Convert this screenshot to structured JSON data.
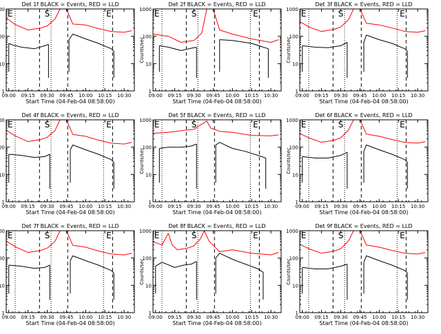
{
  "chart_data": [
    {
      "type": "line",
      "title": "Det 1f BLACK = Events, RED = LLD",
      "xlabel": "Start Time (04-Feb-04 08:58:00)",
      "ylabel": "Counts/sec",
      "xlim": [
        "08:58",
        "10:38"
      ],
      "yscale": "log",
      "ylim": [
        1,
        1000
      ],
      "x_ticks": [
        "09:00",
        "09:15",
        "09:30",
        "09:45",
        "10:00",
        "10:15",
        "10:30"
      ],
      "y_ticks": [
        "1",
        "10",
        "100",
        "1000"
      ],
      "markers": [
        "E",
        "S",
        "E"
      ],
      "series": [
        {
          "color": "#ff0000",
          "x": [
            "08:58",
            "09:05",
            "09:15",
            "09:25",
            "09:30",
            "09:36",
            "09:40",
            "09:45",
            "09:50",
            "10:00",
            "10:10",
            "10:20",
            "10:30",
            "10:36"
          ],
          "values": [
            470,
            270,
            170,
            200,
            240,
            420,
            1000,
            1000,
            280,
            260,
            190,
            150,
            140,
            160
          ]
        },
        {
          "color": "#000000",
          "x": [
            "09:00",
            "09:03",
            "09:10",
            "09:20",
            "09:28",
            "09:31"
          ],
          "values": [
            55,
            48,
            40,
            35,
            45,
            50
          ]
        },
        {
          "color": "#000000",
          "x": [
            "09:47",
            "09:50",
            "10:00",
            "10:10",
            "10:20",
            "10:22"
          ],
          "values": [
            75,
            120,
            80,
            55,
            35,
            28
          ]
        }
      ]
    },
    {
      "type": "line",
      "title": "Det 2f BLACK = Events, RED = LLD",
      "xlabel": "Start Time (04-Feb-04 08:58:00)",
      "ylabel": "Counts/sec",
      "xlim": [
        "08:58",
        "10:38"
      ],
      "yscale": "log",
      "ylim": [
        1,
        1000
      ],
      "x_ticks": [
        "09:00",
        "09:15",
        "09:30",
        "09:45",
        "10:00",
        "10:15",
        "10:30"
      ],
      "y_ticks": [
        "1",
        "10",
        "100",
        "1000"
      ],
      "markers": [
        "E",
        "S",
        "E"
      ],
      "series": [
        {
          "color": "#ff0000",
          "x": [
            "08:58",
            "09:10",
            "09:20",
            "09:30",
            "09:36",
            "09:40",
            "09:45",
            "09:50",
            "10:00",
            "10:15",
            "10:30",
            "10:36"
          ],
          "values": [
            120,
            100,
            60,
            70,
            130,
            1000,
            1000,
            170,
            120,
            80,
            60,
            75
          ]
        },
        {
          "color": "#000000",
          "x": [
            "09:03",
            "09:10",
            "09:20",
            "09:26",
            "09:32"
          ],
          "values": [
            45,
            40,
            30,
            35,
            40
          ]
        },
        {
          "color": "#000000",
          "x": [
            "09:50",
            "10:00",
            "10:15",
            "10:28"
          ],
          "values": [
            75,
            70,
            55,
            35
          ]
        }
      ]
    },
    {
      "type": "line",
      "title": "Det 3f BLACK = Events, RED = LLD",
      "xlabel": "Start Time (04-Feb-04 08:58:00)",
      "ylabel": "Counts/sec",
      "xlim": [
        "08:58",
        "10:38"
      ],
      "yscale": "log",
      "ylim": [
        1,
        1000
      ],
      "x_ticks": [
        "09:00",
        "09:15",
        "09:30",
        "09:45",
        "10:00",
        "10:15",
        "10:30"
      ],
      "y_ticks": [
        "1",
        "10",
        "100",
        "1000"
      ],
      "markers": [
        "E",
        "S",
        "E"
      ],
      "series": [
        {
          "color": "#ff0000",
          "x": [
            "08:58",
            "09:05",
            "09:15",
            "09:25",
            "09:30",
            "09:36",
            "09:40",
            "09:45",
            "09:50",
            "10:00",
            "10:10",
            "10:20",
            "10:30",
            "10:36"
          ],
          "values": [
            350,
            220,
            150,
            180,
            220,
            400,
            1000,
            1000,
            300,
            260,
            200,
            150,
            140,
            160
          ]
        },
        {
          "color": "#000000",
          "x": [
            "09:00",
            "09:10",
            "09:20",
            "09:30",
            "09:35"
          ],
          "values": [
            45,
            40,
            38,
            45,
            60
          ]
        },
        {
          "color": "#000000",
          "x": [
            "09:48",
            "09:50",
            "10:00",
            "10:10",
            "10:20",
            "10:22"
          ],
          "values": [
            60,
            110,
            75,
            55,
            35,
            28
          ]
        }
      ]
    },
    {
      "type": "line",
      "title": "Det 4f BLACK = Events, RED = LLD",
      "xlabel": "Start Time (04-Feb-04 08:58:00)",
      "ylabel": "Counts/sec",
      "xlim": [
        "08:58",
        "10:38"
      ],
      "yscale": "log",
      "ylim": [
        1,
        1000
      ],
      "x_ticks": [
        "09:00",
        "09:15",
        "09:30",
        "09:45",
        "10:00",
        "10:15",
        "10:30"
      ],
      "y_ticks": [
        "1",
        "10",
        "100",
        "1000"
      ],
      "markers": [
        "E",
        "S",
        "E"
      ],
      "series": [
        {
          "color": "#ff0000",
          "x": [
            "08:58",
            "09:05",
            "09:15",
            "09:25",
            "09:30",
            "09:36",
            "09:40",
            "09:45",
            "09:50",
            "10:00",
            "10:10",
            "10:20",
            "10:30",
            "10:36"
          ],
          "values": [
            420,
            260,
            160,
            190,
            230,
            400,
            1000,
            1000,
            290,
            250,
            180,
            140,
            130,
            150
          ]
        },
        {
          "color": "#000000",
          "x": [
            "09:00",
            "09:10",
            "09:20",
            "09:28",
            "09:32"
          ],
          "values": [
            55,
            50,
            42,
            45,
            55
          ]
        },
        {
          "color": "#000000",
          "x": [
            "09:48",
            "09:50",
            "10:00",
            "10:10",
            "10:20",
            "10:22"
          ],
          "values": [
            80,
            120,
            80,
            55,
            35,
            28
          ]
        }
      ]
    },
    {
      "type": "line",
      "title": "Det 5f BLACK = Events, RED = LLD",
      "xlabel": "Start Time (04-Feb-04 08:58:00)",
      "ylabel": "Counts/sec",
      "xlim": [
        "08:58",
        "10:38"
      ],
      "yscale": "log",
      "ylim": [
        1,
        1000
      ],
      "x_ticks": [
        "09:00",
        "09:15",
        "09:30",
        "09:45",
        "10:00",
        "10:15",
        "10:30"
      ],
      "y_ticks": [
        "1",
        "10",
        "100",
        "1000"
      ],
      "markers": [
        "E",
        "S",
        "E"
      ],
      "series": [
        {
          "color": "#ff0000",
          "x": [
            "08:58",
            "09:10",
            "09:20",
            "09:30",
            "09:35",
            "09:40",
            "09:43",
            "09:50",
            "10:00",
            "10:15",
            "10:30",
            "10:36"
          ],
          "values": [
            320,
            350,
            400,
            450,
            650,
            900,
            500,
            380,
            350,
            270,
            260,
            280
          ]
        },
        {
          "color": "#000000",
          "x": [
            "09:03",
            "09:10",
            "09:20",
            "09:28",
            "09:32"
          ],
          "values": [
            90,
            100,
            100,
            110,
            130
          ]
        },
        {
          "color": "#000000",
          "x": [
            "09:47",
            "09:50",
            "10:00",
            "10:10",
            "10:20",
            "10:26"
          ],
          "values": [
            120,
            150,
            90,
            70,
            50,
            40
          ]
        }
      ]
    },
    {
      "type": "line",
      "title": "Det 6f BLACK = Events, RED = LLD",
      "xlabel": "Start Time (04-Feb-04 08:58:00)",
      "ylabel": "Counts/sec",
      "xlim": [
        "08:58",
        "10:38"
      ],
      "yscale": "log",
      "ylim": [
        1,
        1000
      ],
      "x_ticks": [
        "09:00",
        "09:15",
        "09:30",
        "09:45",
        "10:00",
        "10:15",
        "10:30"
      ],
      "y_ticks": [
        "1",
        "10",
        "100",
        "1000"
      ],
      "markers": [
        "E",
        "S",
        "E"
      ],
      "series": [
        {
          "color": "#ff0000",
          "x": [
            "08:58",
            "09:05",
            "09:15",
            "09:25",
            "09:30",
            "09:36",
            "09:40",
            "09:45",
            "09:50",
            "10:00",
            "10:10",
            "10:20",
            "10:30",
            "10:36"
          ],
          "values": [
            320,
            220,
            150,
            180,
            220,
            420,
            1000,
            1000,
            300,
            250,
            190,
            150,
            140,
            160
          ]
        },
        {
          "color": "#000000",
          "x": [
            "09:00",
            "09:10",
            "09:20",
            "09:30",
            "09:35"
          ],
          "values": [
            45,
            40,
            40,
            50,
            65
          ]
        },
        {
          "color": "#000000",
          "x": [
            "09:48",
            "09:50",
            "10:00",
            "10:10",
            "10:20",
            "10:22"
          ],
          "values": [
            70,
            120,
            80,
            55,
            35,
            28
          ]
        }
      ]
    },
    {
      "type": "line",
      "title": "Det 7f BLACK = Events, RED = LLD",
      "xlabel": "Start Time (04-Feb-04 08:58:00)",
      "ylabel": "Counts/sec",
      "xlim": [
        "08:58",
        "10:38"
      ],
      "yscale": "log",
      "ylim": [
        1,
        1000
      ],
      "x_ticks": [
        "09:00",
        "09:15",
        "09:30",
        "09:45",
        "10:00",
        "10:15",
        "10:30"
      ],
      "y_ticks": [
        "1",
        "10",
        "100",
        "1000"
      ],
      "markers": [
        "E",
        "S",
        "E"
      ],
      "series": [
        {
          "color": "#ff0000",
          "x": [
            "08:58",
            "09:05",
            "09:15",
            "09:25",
            "09:30",
            "09:36",
            "09:40",
            "09:45",
            "09:50",
            "10:00",
            "10:10",
            "10:20",
            "10:30",
            "10:36"
          ],
          "values": [
            420,
            260,
            160,
            190,
            230,
            400,
            1000,
            1000,
            290,
            250,
            180,
            140,
            130,
            150
          ]
        },
        {
          "color": "#000000",
          "x": [
            "09:00",
            "09:10",
            "09:20",
            "09:28",
            "09:32"
          ],
          "values": [
            55,
            50,
            42,
            45,
            55
          ]
        },
        {
          "color": "#000000",
          "x": [
            "09:48",
            "09:50",
            "10:00",
            "10:10",
            "10:20",
            "10:22"
          ],
          "values": [
            80,
            120,
            80,
            55,
            35,
            28
          ]
        }
      ]
    },
    {
      "type": "line",
      "title": "Det 8f BLACK = Events, RED = LLD",
      "xlabel": "Start Time (04-Feb-04 08:58:00)",
      "ylabel": "Counts/sec",
      "xlim": [
        "08:58",
        "10:38"
      ],
      "yscale": "log",
      "ylim": [
        1,
        1000
      ],
      "x_ticks": [
        "09:00",
        "09:15",
        "09:30",
        "09:45",
        "10:00",
        "10:15",
        "10:30"
      ],
      "y_ticks": [
        "1",
        "10",
        "100",
        "1000"
      ],
      "markers": [
        "E",
        "S",
        "E"
      ],
      "series": [
        {
          "color": "#ff0000",
          "x": [
            "08:58",
            "09:05",
            "09:10",
            "09:13",
            "09:17",
            "09:25",
            "09:30",
            "09:35",
            "09:38",
            "09:42",
            "09:50",
            "10:00",
            "10:15",
            "10:30",
            "10:36"
          ],
          "values": [
            400,
            300,
            800,
            300,
            200,
            230,
            280,
            500,
            1000,
            400,
            170,
            200,
            150,
            130,
            160
          ]
        },
        {
          "color": "#000000",
          "x": [
            "09:00",
            "09:05",
            "09:15",
            "09:22",
            "09:28",
            "09:32"
          ],
          "values": [
            50,
            70,
            45,
            55,
            60,
            75
          ]
        },
        {
          "color": "#000000",
          "x": [
            "09:47",
            "09:50",
            "10:00",
            "10:10",
            "10:20",
            "10:24"
          ],
          "values": [
            100,
            150,
            90,
            60,
            40,
            30
          ]
        }
      ]
    },
    {
      "type": "line",
      "title": "Det 9f BLACK = Events, RED = LLD",
      "xlabel": "Start Time (04-Feb-04 08:58:00)",
      "ylabel": "Counts/sec",
      "xlim": [
        "08:58",
        "10:38"
      ],
      "yscale": "log",
      "ylim": [
        1,
        1000
      ],
      "x_ticks": [
        "09:00",
        "09:15",
        "09:30",
        "09:45",
        "10:00",
        "10:15",
        "10:30"
      ],
      "y_ticks": [
        "1",
        "10",
        "100",
        "1000"
      ],
      "markers": [
        "E",
        "S",
        "E"
      ],
      "series": [
        {
          "color": "#ff0000",
          "x": [
            "08:58",
            "09:05",
            "09:15",
            "09:25",
            "09:30",
            "09:36",
            "09:40",
            "09:45",
            "09:50",
            "10:00",
            "10:10",
            "10:20",
            "10:30",
            "10:36"
          ],
          "values": [
            320,
            220,
            150,
            180,
            220,
            420,
            1000,
            1000,
            300,
            250,
            190,
            150,
            140,
            160
          ]
        },
        {
          "color": "#000000",
          "x": [
            "09:00",
            "09:10",
            "09:20",
            "09:30",
            "09:35"
          ],
          "values": [
            45,
            40,
            40,
            50,
            60
          ]
        },
        {
          "color": "#000000",
          "x": [
            "09:48",
            "09:50",
            "10:00",
            "10:10",
            "10:20",
            "10:22"
          ],
          "values": [
            70,
            120,
            80,
            55,
            35,
            28
          ]
        }
      ]
    }
  ]
}
